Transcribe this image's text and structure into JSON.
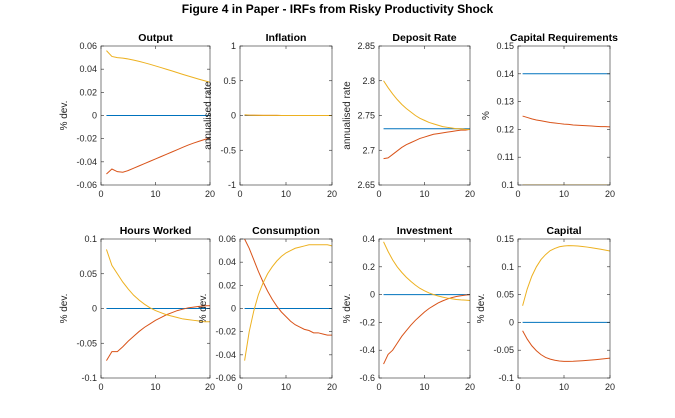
{
  "figure_title": "Figure 4 in Paper - IRFs from Risky Productivity Shock",
  "colors": {
    "series_blue": "#0072BD",
    "series_red": "#D95319",
    "series_yellow": "#EDB120"
  },
  "chart_data": [
    {
      "type": "line",
      "title": "Output",
      "ylabel": "% dev.",
      "xlim": [
        0,
        20
      ],
      "ylim": [
        -0.06,
        0.06
      ],
      "xticks": [
        0,
        10,
        20
      ],
      "yticks": [
        -0.06,
        -0.04,
        -0.02,
        0,
        0.02,
        0.04,
        0.06
      ],
      "ytick_labels": [
        "-0.06",
        "-0.04",
        "-0.02",
        "0",
        "0.02",
        "0.04",
        "0.06"
      ],
      "x": [
        1,
        2,
        3,
        4,
        5,
        6,
        7,
        8,
        9,
        10,
        11,
        12,
        13,
        14,
        15,
        16,
        17,
        18,
        19,
        20
      ],
      "series": [
        {
          "color": "#0072BD",
          "values": [
            0,
            0,
            0,
            0,
            0,
            0,
            0,
            0,
            0,
            0,
            0,
            0,
            0,
            0,
            0,
            0,
            0,
            0,
            0,
            0
          ]
        },
        {
          "color": "#D95319",
          "values": [
            -0.0505,
            -0.0462,
            -0.0485,
            -0.049,
            -0.0475,
            -0.0455,
            -0.0435,
            -0.0415,
            -0.0395,
            -0.0375,
            -0.0355,
            -0.0335,
            -0.0315,
            -0.0295,
            -0.0275,
            -0.0255,
            -0.0238,
            -0.0222,
            -0.0207,
            -0.0193
          ]
        },
        {
          "color": "#EDB120",
          "values": [
            0.056,
            0.051,
            0.05,
            0.0495,
            0.0488,
            0.0478,
            0.0467,
            0.0455,
            0.0442,
            0.0428,
            0.0414,
            0.0399,
            0.0385,
            0.037,
            0.0355,
            0.0341,
            0.0327,
            0.0313,
            0.03,
            0.0287
          ]
        }
      ]
    },
    {
      "type": "line",
      "title": "Inflation",
      "ylabel": "annualised rate",
      "xlim": [
        0,
        20
      ],
      "ylim": [
        -1,
        1
      ],
      "xticks": [
        0,
        10,
        20
      ],
      "yticks": [
        -1,
        -0.5,
        0,
        0.5,
        1
      ],
      "ytick_labels": [
        "-1",
        "-0.5",
        "0",
        "0.5",
        "1"
      ],
      "x": [
        1,
        2,
        3,
        4,
        5,
        6,
        7,
        8,
        9,
        10,
        11,
        12,
        13,
        14,
        15,
        16,
        17,
        18,
        19,
        20
      ],
      "series": [
        {
          "color": "#0072BD",
          "values": [
            0,
            0,
            0,
            0,
            0,
            0,
            0,
            0,
            0,
            0,
            0,
            0,
            0,
            0,
            0,
            0,
            0,
            0,
            0,
            0
          ]
        },
        {
          "color": "#D95319",
          "values": [
            0.005,
            0.004,
            0.003,
            0.002,
            0.002,
            0.001,
            0.001,
            0.001,
            0,
            0,
            0,
            0,
            0,
            0,
            0,
            0,
            0,
            0,
            0,
            0
          ]
        },
        {
          "color": "#EDB120",
          "values": [
            0.01,
            0.006,
            0.004,
            0.003,
            0.002,
            0.001,
            0.001,
            0.001,
            0,
            0,
            0,
            0,
            0,
            0,
            0,
            0,
            0,
            0,
            0,
            0
          ]
        }
      ]
    },
    {
      "type": "line",
      "title": "Deposit Rate",
      "ylabel": "annualised rate",
      "xlim": [
        0,
        20
      ],
      "ylim": [
        2.65,
        2.85
      ],
      "xticks": [
        0,
        10,
        20
      ],
      "yticks": [
        2.65,
        2.7,
        2.75,
        2.8,
        2.85
      ],
      "ytick_labels": [
        "2.65",
        "2.7",
        "2.75",
        "2.8",
        "2.85"
      ],
      "x": [
        1,
        2,
        3,
        4,
        5,
        6,
        7,
        8,
        9,
        10,
        11,
        12,
        13,
        14,
        15,
        16,
        17,
        18,
        19,
        20
      ],
      "series": [
        {
          "color": "#0072BD",
          "values": [
            2.731,
            2.731,
            2.731,
            2.731,
            2.731,
            2.731,
            2.731,
            2.731,
            2.731,
            2.731,
            2.731,
            2.731,
            2.731,
            2.731,
            2.731,
            2.731,
            2.731,
            2.731,
            2.731,
            2.731
          ]
        },
        {
          "color": "#D95319",
          "values": [
            2.688,
            2.689,
            2.694,
            2.699,
            2.704,
            2.708,
            2.711,
            2.714,
            2.717,
            2.719,
            2.721,
            2.723,
            2.724,
            2.725,
            2.726,
            2.727,
            2.728,
            2.729,
            2.729,
            2.73
          ]
        },
        {
          "color": "#EDB120",
          "values": [
            2.8,
            2.79,
            2.781,
            2.773,
            2.766,
            2.76,
            2.755,
            2.75,
            2.746,
            2.743,
            2.74,
            2.738,
            2.736,
            2.734,
            2.733,
            2.732,
            2.731,
            2.731,
            2.73,
            2.73
          ]
        }
      ]
    },
    {
      "type": "line",
      "title": "Capital Requirements",
      "ylabel": "%",
      "xlim": [
        0,
        20
      ],
      "ylim": [
        0.1,
        0.15
      ],
      "xticks": [
        0,
        10,
        20
      ],
      "yticks": [
        0.1,
        0.11,
        0.12,
        0.13,
        0.14,
        0.15
      ],
      "ytick_labels": [
        "0.1",
        "0.11",
        "0.12",
        "0.13",
        "0.14",
        "0.15"
      ],
      "x": [
        1,
        2,
        3,
        4,
        5,
        6,
        7,
        8,
        9,
        10,
        11,
        12,
        13,
        14,
        15,
        16,
        17,
        18,
        19,
        20
      ],
      "series": [
        {
          "color": "#0072BD",
          "values": [
            0.14,
            0.14,
            0.14,
            0.14,
            0.14,
            0.14,
            0.14,
            0.14,
            0.14,
            0.14,
            0.14,
            0.14,
            0.14,
            0.14,
            0.14,
            0.14,
            0.14,
            0.14,
            0.14,
            0.14
          ]
        },
        {
          "color": "#D95319",
          "values": [
            0.1248,
            0.1243,
            0.1238,
            0.1234,
            0.1231,
            0.1228,
            0.1225,
            0.1223,
            0.1221,
            0.1219,
            0.1218,
            0.1216,
            0.1215,
            0.1214,
            0.1213,
            0.1212,
            0.1211,
            0.121,
            0.121,
            0.1209
          ]
        },
        {
          "color": "#EDB120",
          "values": [
            0.1,
            0.1,
            0.1,
            0.1,
            0.1,
            0.1,
            0.1,
            0.1,
            0.1,
            0.1,
            0.1,
            0.1,
            0.1,
            0.1,
            0.1,
            0.1,
            0.1,
            0.1,
            0.1,
            0.1
          ]
        }
      ]
    },
    {
      "type": "line",
      "title": "Hours Worked",
      "ylabel": "% dev.",
      "xlim": [
        0,
        20
      ],
      "ylim": [
        -0.1,
        0.1
      ],
      "xticks": [
        0,
        10,
        20
      ],
      "yticks": [
        -0.1,
        -0.05,
        0,
        0.05,
        0.1
      ],
      "ytick_labels": [
        "-0.1",
        "-0.05",
        "0",
        "0.05",
        "0.1"
      ],
      "x": [
        1,
        2,
        3,
        4,
        5,
        6,
        7,
        8,
        9,
        10,
        11,
        12,
        13,
        14,
        15,
        16,
        17,
        18,
        19,
        20
      ],
      "series": [
        {
          "color": "#0072BD",
          "values": [
            0,
            0,
            0,
            0,
            0,
            0,
            0,
            0,
            0,
            0,
            0,
            0,
            0,
            0,
            0,
            0,
            0,
            0,
            0,
            0
          ]
        },
        {
          "color": "#D95319",
          "values": [
            -0.075,
            -0.062,
            -0.062,
            -0.055,
            -0.047,
            -0.04,
            -0.033,
            -0.027,
            -0.022,
            -0.017,
            -0.013,
            -0.009,
            -0.006,
            -0.003,
            -0.001,
            0.001,
            0.002,
            0.003,
            0.004,
            0.004
          ]
        },
        {
          "color": "#EDB120",
          "values": [
            0.085,
            0.062,
            0.05,
            0.038,
            0.028,
            0.019,
            0.012,
            0.006,
            0.001,
            -0.003,
            -0.006,
            -0.009,
            -0.011,
            -0.013,
            -0.015,
            -0.016,
            -0.017,
            -0.018,
            -0.019,
            -0.019
          ]
        }
      ]
    },
    {
      "type": "line",
      "title": "Consumption",
      "ylabel": "% dev.",
      "xlim": [
        0,
        20
      ],
      "ylim": [
        -0.06,
        0.06
      ],
      "xticks": [
        0,
        10,
        20
      ],
      "yticks": [
        -0.06,
        -0.04,
        -0.02,
        0,
        0.02,
        0.04,
        0.06
      ],
      "ytick_labels": [
        "-0.06",
        "-0.04",
        "-0.02",
        "0",
        "0.02",
        "0.04",
        "0.06"
      ],
      "x": [
        1,
        2,
        3,
        4,
        5,
        6,
        7,
        8,
        9,
        10,
        11,
        12,
        13,
        14,
        15,
        16,
        17,
        18,
        19,
        20
      ],
      "series": [
        {
          "color": "#0072BD",
          "values": [
            0,
            0,
            0,
            0,
            0,
            0,
            0,
            0,
            0,
            0,
            0,
            0,
            0,
            0,
            0,
            0,
            0,
            0,
            0,
            0
          ]
        },
        {
          "color": "#D95319",
          "values": [
            0.06,
            0.052,
            0.042,
            0.032,
            0.023,
            0.015,
            0.008,
            0.002,
            -0.003,
            -0.007,
            -0.011,
            -0.014,
            -0.016,
            -0.018,
            -0.019,
            -0.021,
            -0.021,
            -0.022,
            -0.023,
            -0.023
          ]
        },
        {
          "color": "#EDB120",
          "values": [
            -0.045,
            -0.02,
            -0.002,
            0.012,
            0.022,
            0.03,
            0.036,
            0.041,
            0.045,
            0.048,
            0.05,
            0.052,
            0.053,
            0.054,
            0.055,
            0.055,
            0.055,
            0.055,
            0.055,
            0.054
          ]
        }
      ]
    },
    {
      "type": "line",
      "title": "Investment",
      "ylabel": "% dev.",
      "xlim": [
        0,
        20
      ],
      "ylim": [
        -0.6,
        0.4
      ],
      "xticks": [
        0,
        10,
        20
      ],
      "yticks": [
        -0.6,
        -0.4,
        -0.2,
        0,
        0.2,
        0.4
      ],
      "ytick_labels": [
        "-0.6",
        "-0.4",
        "-0.2",
        "0",
        "0.2",
        "0.4"
      ],
      "x": [
        1,
        2,
        3,
        4,
        5,
        6,
        7,
        8,
        9,
        10,
        11,
        12,
        13,
        14,
        15,
        16,
        17,
        18,
        19,
        20
      ],
      "series": [
        {
          "color": "#0072BD",
          "values": [
            0,
            0,
            0,
            0,
            0,
            0,
            0,
            0,
            0,
            0,
            0,
            0,
            0,
            0,
            0,
            0,
            0,
            0,
            0,
            0
          ]
        },
        {
          "color": "#D95319",
          "values": [
            -0.5,
            -0.43,
            -0.4,
            -0.35,
            -0.3,
            -0.26,
            -0.22,
            -0.185,
            -0.155,
            -0.125,
            -0.1,
            -0.08,
            -0.06,
            -0.045,
            -0.032,
            -0.022,
            -0.014,
            -0.008,
            -0.004,
            0
          ]
        },
        {
          "color": "#EDB120",
          "values": [
            0.38,
            0.31,
            0.25,
            0.2,
            0.16,
            0.125,
            0.095,
            0.068,
            0.045,
            0.027,
            0.012,
            0,
            -0.01,
            -0.018,
            -0.025,
            -0.03,
            -0.035,
            -0.038,
            -0.04,
            -0.042
          ]
        }
      ]
    },
    {
      "type": "line",
      "title": "Capital",
      "ylabel": "% dev.",
      "xlim": [
        0,
        20
      ],
      "ylim": [
        -0.1,
        0.15
      ],
      "xticks": [
        0,
        10,
        20
      ],
      "yticks": [
        -0.1,
        -0.05,
        0,
        0.05,
        0.1,
        0.15
      ],
      "ytick_labels": [
        "-0.1",
        "-0.05",
        "0",
        "0.05",
        "0.1",
        "0.15"
      ],
      "x": [
        1,
        2,
        3,
        4,
        5,
        6,
        7,
        8,
        9,
        10,
        11,
        12,
        13,
        14,
        15,
        16,
        17,
        18,
        19,
        20
      ],
      "series": [
        {
          "color": "#0072BD",
          "values": [
            0,
            0,
            0,
            0,
            0,
            0,
            0,
            0,
            0,
            0,
            0,
            0,
            0,
            0,
            0,
            0,
            0,
            0,
            0,
            0
          ]
        },
        {
          "color": "#D95319",
          "values": [
            -0.015,
            -0.03,
            -0.042,
            -0.051,
            -0.058,
            -0.063,
            -0.066,
            -0.068,
            -0.0695,
            -0.07,
            -0.07,
            -0.0698,
            -0.0694,
            -0.069,
            -0.0684,
            -0.0677,
            -0.0669,
            -0.0661,
            -0.0652,
            -0.0643
          ]
        },
        {
          "color": "#EDB120",
          "values": [
            0.03,
            0.06,
            0.083,
            0.1,
            0.113,
            0.122,
            0.129,
            0.133,
            0.136,
            0.1375,
            0.138,
            0.1378,
            0.1373,
            0.1365,
            0.1355,
            0.1343,
            0.133,
            0.1315,
            0.13,
            0.1285
          ]
        }
      ]
    }
  ]
}
